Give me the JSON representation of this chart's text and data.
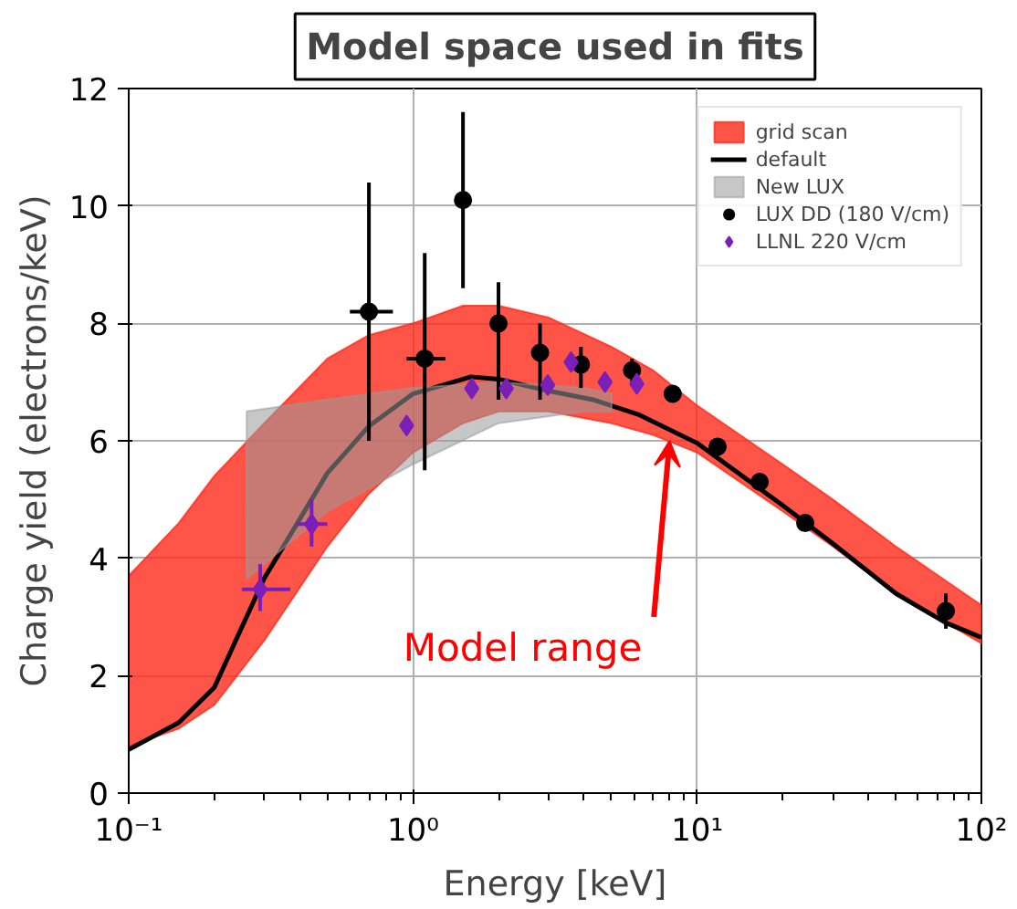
{
  "chart_data": {
    "type": "line",
    "title": "Model space used in fits",
    "xlabel": "Energy [keV]",
    "ylabel": "Charge yield (electrons/keV)",
    "log": "x",
    "xlim": [
      0.1,
      100
    ],
    "ylim": [
      0,
      12
    ],
    "xticks": [
      {
        "value": 0.1,
        "label": "10⁻¹"
      },
      {
        "value": 1,
        "label": "10⁰"
      },
      {
        "value": 10,
        "label": "10¹"
      },
      {
        "value": 100,
        "label": "10²"
      }
    ],
    "yticks": [
      0,
      2,
      4,
      6,
      8,
      10,
      12
    ],
    "grid": true,
    "legend": "top right",
    "series": [
      {
        "name": "grid scan",
        "type": "line",
        "color": "#ff2a1a",
        "x": [
          0.1,
          0.15,
          0.2,
          0.3,
          0.5,
          0.7,
          1,
          1.5,
          2,
          3,
          5,
          7,
          10,
          20,
          30,
          50,
          100
        ],
        "values": [
          null,
          null,
          null,
          null,
          null,
          null,
          null,
          null,
          null,
          null,
          null,
          null,
          null,
          null,
          null,
          null,
          null
        ],
        "upper": [
          3.7,
          4.6,
          5.4,
          6.3,
          7.4,
          7.8,
          8.0,
          8.3,
          8.3,
          8.1,
          7.6,
          7.2,
          6.6,
          5.6,
          5.0,
          4.2,
          3.2
        ],
        "lower": [
          0.8,
          1.1,
          1.5,
          2.6,
          4.2,
          5.1,
          5.8,
          6.3,
          6.5,
          6.5,
          6.3,
          6.1,
          5.8,
          4.8,
          4.2,
          3.4,
          2.55
        ]
      },
      {
        "name": "default",
        "type": "line",
        "color": "#000000",
        "x": [
          0.1,
          0.15,
          0.2,
          0.3,
          0.5,
          0.7,
          1,
          1.6,
          2,
          3,
          4.3,
          6.2,
          10,
          20,
          30,
          50,
          75,
          100
        ],
        "values": [
          0.74,
          1.2,
          1.8,
          3.66,
          5.45,
          6.25,
          6.8,
          7.09,
          7.05,
          6.85,
          6.7,
          6.45,
          5.96,
          4.9,
          4.25,
          3.4,
          2.9,
          2.65
        ]
      },
      {
        "name": "New LUX",
        "color": "#999999",
        "x": [
          0.26,
          0.5,
          1,
          2,
          4,
          5
        ],
        "values": [
          null,
          null,
          null,
          null,
          null,
          null
        ],
        "upper": [
          6.5,
          6.7,
          6.9,
          7.0,
          6.9,
          6.8
        ],
        "lower": [
          3.65,
          4.8,
          5.6,
          6.3,
          6.5,
          6.5
        ]
      },
      {
        "name": "LUX DD (180 V/cm)",
        "type": "scatter",
        "marker": "circle",
        "color": "#000000",
        "x": [
          0.7,
          1.1,
          1.5,
          2.0,
          2.8,
          3.9,
          5.9,
          8.2,
          11.8,
          16.6,
          24,
          75
        ],
        "values": [
          8.2,
          7.4,
          10.1,
          8.0,
          7.5,
          7.3,
          7.2,
          6.8,
          5.9,
          5.3,
          4.6,
          3.1
        ],
        "errors": [
          [
            6.0,
            10.4
          ],
          [
            5.5,
            9.2
          ],
          [
            8.6,
            11.6
          ],
          [
            6.7,
            8.7
          ],
          [
            6.7,
            8.0
          ],
          [
            6.9,
            7.6
          ],
          [
            7.0,
            7.4
          ],
          null,
          null,
          null,
          null,
          [
            2.8,
            3.4
          ]
        ],
        "xerrors": [
          [
            0.6,
            0.85
          ],
          [
            0.95,
            1.3
          ],
          null,
          null,
          null,
          null,
          null,
          null,
          null,
          null,
          null,
          null
        ]
      },
      {
        "name": "LLNL 220 V/cm",
        "type": "scatter",
        "marker": "diamond",
        "color": "#7a1fb8",
        "x": [
          0.29,
          0.44,
          0.95,
          1.61,
          2.13,
          2.98,
          3.6,
          4.74,
          6.13
        ],
        "values": [
          3.47,
          4.58,
          6.26,
          6.89,
          6.89,
          6.95,
          7.34,
          7.0,
          6.97
        ],
        "errors": [
          [
            3.1,
            3.9
          ],
          [
            4.2,
            5.0
          ],
          null,
          null,
          null,
          null,
          null,
          null,
          null
        ],
        "xerrors": [
          [
            0.25,
            0.37
          ],
          [
            0.39,
            0.5
          ],
          null,
          null,
          null,
          null,
          null,
          null,
          null
        ]
      }
    ],
    "annotations": [
      {
        "text": "Model range",
        "x": 8,
        "y": 6.0
      }
    ]
  }
}
